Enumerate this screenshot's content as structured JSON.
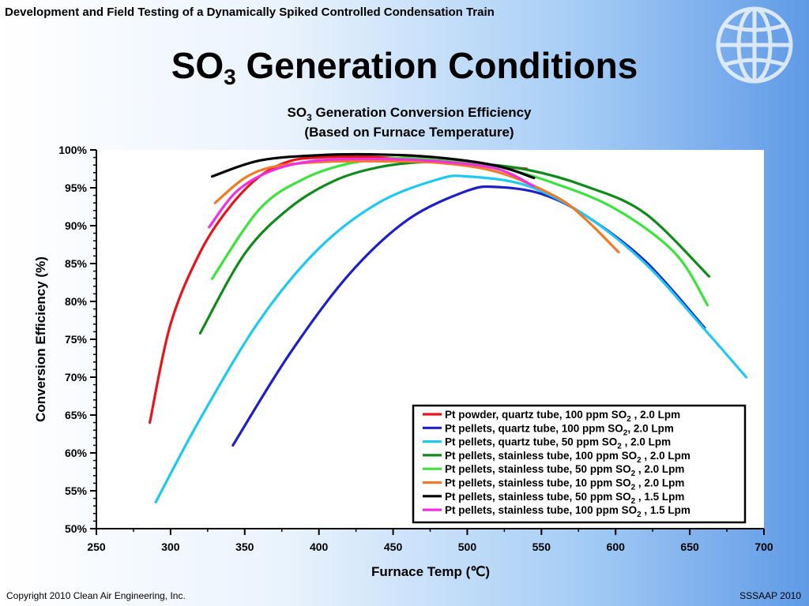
{
  "header": {
    "title": "Development and Field Testing of a Dynamically Spiked Controlled Condensation Train"
  },
  "slide": {
    "title_main": "SO",
    "title_sub": "3",
    "title_rest": " Generation Conditions"
  },
  "footer": {
    "copyright": "Copyright 2010 Clean Air Engineering, Inc.",
    "event": "SSSAAP 2010"
  },
  "icons": {
    "logo": "globe-icon"
  },
  "chart_data": {
    "type": "line",
    "title_line1_prefix": "SO",
    "title_line1_sub": "3",
    "title_line1_suffix": " Generation Conversion Efficiency",
    "title_line2": "(Based on Furnace Temperature)",
    "xlabel": "Furnace Temp (℃)",
    "ylabel": "Conversion Efficiency (%)",
    "xlim": [
      250,
      700
    ],
    "ylim": [
      50,
      100
    ],
    "xticks": [
      "250",
      "300",
      "350",
      "400",
      "450",
      "500",
      "550",
      "600",
      "650",
      "700"
    ],
    "yticks": [
      "50%",
      "55%",
      "60%",
      "65%",
      "70%",
      "75%",
      "80%",
      "85%",
      "90%",
      "95%",
      "100%"
    ],
    "grid": false,
    "legend_position": "bottom-right",
    "series": [
      {
        "name": "Pt powder, quartz tube, 100 ppm SO2 , 2.0 Lpm",
        "label_pre": "Pt powder, quartz tube, 100 ppm SO",
        "label_sub": "2",
        "label_post": " , 2.0 Lpm",
        "color": "#e8141b",
        "points": [
          [
            286,
            64
          ],
          [
            300,
            77
          ],
          [
            320,
            86.5
          ],
          [
            340,
            92.5
          ],
          [
            360,
            96.5
          ],
          [
            380,
            98.5
          ],
          [
            400,
            99
          ],
          [
            430,
            99.1
          ],
          [
            460,
            98.8
          ],
          [
            500,
            98.2
          ],
          [
            540,
            97.5
          ]
        ]
      },
      {
        "name": "Pt pellets, quartz tube, 100 ppm SO2, 2.0 Lpm",
        "label_pre": "Pt pellets, quartz tube, 100 ppm SO",
        "label_sub": "2",
        "label_post": ", 2.0 Lpm",
        "color": "#1f1fc8",
        "points": [
          [
            342,
            61
          ],
          [
            380,
            73
          ],
          [
            420,
            83.5
          ],
          [
            460,
            90.8
          ],
          [
            500,
            94.6
          ],
          [
            520,
            95.1
          ],
          [
            550,
            94.2
          ],
          [
            580,
            91.3
          ],
          [
            620,
            85.3
          ],
          [
            660,
            76.5
          ]
        ]
      },
      {
        "name": "Pt pellets, quartz tube, 50 ppm SO2 , 2.0 Lpm",
        "label_pre": "Pt pellets, quartz tube, 50 ppm SO",
        "label_sub": "2",
        "label_post": " , 2.0 Lpm",
        "color": "#1ec8f0",
        "points": [
          [
            290,
            53.5
          ],
          [
            320,
            64.5
          ],
          [
            360,
            77.5
          ],
          [
            400,
            87
          ],
          [
            440,
            93
          ],
          [
            480,
            96.1
          ],
          [
            500,
            96.5
          ],
          [
            540,
            95.3
          ],
          [
            580,
            91.3
          ],
          [
            620,
            85
          ],
          [
            660,
            76.3
          ],
          [
            688,
            70
          ]
        ]
      },
      {
        "name": "Pt pellets, stainless tube, 100 ppm SO2 , 2.0 Lpm",
        "label_pre": "Pt pellets, stainless tube, 100 ppm SO",
        "label_sub": "2",
        "label_post": " , 2.0 Lpm",
        "color": "#108a1a",
        "points": [
          [
            320,
            75.8
          ],
          [
            350,
            86.3
          ],
          [
            380,
            92.3
          ],
          [
            410,
            95.9
          ],
          [
            440,
            97.7
          ],
          [
            470,
            98.4
          ],
          [
            500,
            98.3
          ],
          [
            540,
            97.4
          ],
          [
            580,
            95.2
          ],
          [
            620,
            91.6
          ],
          [
            663,
            83.3
          ]
        ]
      },
      {
        "name": "Pt pellets, stainless tube, 50 ppm SO2 , 2.0 Lpm",
        "label_pre": "Pt pellets, stainless tube, 50 ppm SO",
        "label_sub": "2",
        "label_post": " , 2.0 Lpm",
        "color": "#3ee23e",
        "points": [
          [
            328,
            83
          ],
          [
            360,
            92.2
          ],
          [
            390,
            96.2
          ],
          [
            420,
            98.2
          ],
          [
            450,
            98.9
          ],
          [
            480,
            98.8
          ],
          [
            520,
            97.8
          ],
          [
            560,
            95.5
          ],
          [
            600,
            92.2
          ],
          [
            640,
            86.4
          ],
          [
            662,
            79.5
          ]
        ]
      },
      {
        "name": "Pt pellets, stainless tube, 10 ppm SO2 , 2.0 Lpm",
        "label_pre": "Pt pellets, stainless tube, 10 ppm SO",
        "label_sub": "2",
        "label_post": " , 2.0 Lpm",
        "color": "#f07a26",
        "points": [
          [
            330,
            93
          ],
          [
            350,
            96.3
          ],
          [
            370,
            97.8
          ],
          [
            400,
            98.4
          ],
          [
            440,
            98.5
          ],
          [
            480,
            98.3
          ],
          [
            520,
            97.1
          ],
          [
            560,
            93.8
          ],
          [
            580,
            90.8
          ],
          [
            602,
            86.5
          ]
        ]
      },
      {
        "name": "Pt pellets, stainless tube, 50 ppm SO2 , 1.5 Lpm",
        "label_pre": "Pt pellets, stainless tube, 50 ppm SO",
        "label_sub": "2",
        "label_post": " , 1.5 Lpm",
        "color": "#000000",
        "points": [
          [
            328,
            96.5
          ],
          [
            360,
            98.6
          ],
          [
            400,
            99.3
          ],
          [
            440,
            99.4
          ],
          [
            480,
            99
          ],
          [
            520,
            97.9
          ],
          [
            545,
            96.3
          ]
        ]
      },
      {
        "name": "Pt pellets, stainless tube, 100 ppm SO2 , 1.5 Lpm",
        "label_pre": "Pt pellets, stainless tube, 100 ppm SO",
        "label_sub": "2",
        "label_post": " , 1.5 Lpm",
        "color": "#f030e0",
        "points": [
          [
            326,
            89.8
          ],
          [
            345,
            94.6
          ],
          [
            370,
            97.4
          ],
          [
            400,
            98.6
          ],
          [
            440,
            98.8
          ],
          [
            480,
            98.5
          ],
          [
            520,
            97.5
          ],
          [
            545,
            95.2
          ]
        ]
      }
    ]
  }
}
